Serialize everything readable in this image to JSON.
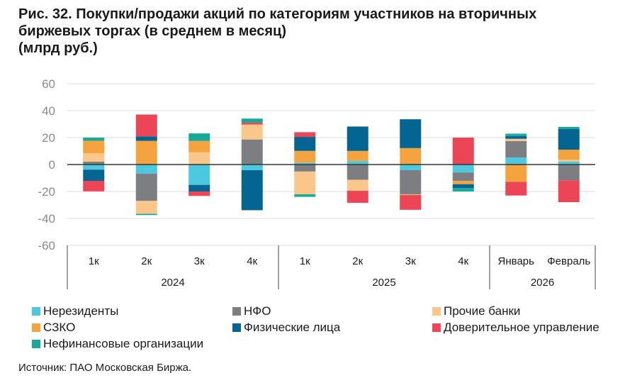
{
  "title_lines": [
    "Рис. 32. Покупки/продажи акций по категориям участников на вторичных",
    "биржевых торгах (в среднем в месяц)",
    "(млрд руб.)"
  ],
  "source": "Источник: ПАО Московская Биржа.",
  "chart_data": {
    "type": "bar",
    "stacked": true,
    "title": "Рис. 32. Покупки/продажи акций по категориям участников на вторичных биржевых торгах (в среднем в месяц) (млрд руб.)",
    "ylim": [
      -60,
      60
    ],
    "yticks": [
      60,
      40,
      20,
      0,
      -20,
      -40,
      -60
    ],
    "grid": true,
    "legend_position": "bottom",
    "categories": [
      "1к",
      "2к",
      "3к",
      "4к",
      "1к",
      "2к",
      "3к",
      "4к",
      "Январь",
      "Февраль"
    ],
    "groups": [
      {
        "label": "2024",
        "count": 4
      },
      {
        "label": "2025",
        "count": 4
      },
      {
        "label": "2026",
        "count": 2
      }
    ],
    "series": [
      {
        "name": "Нерезиденты",
        "color": "#4DC9DF",
        "values": [
          -3.8,
          -6.8,
          -15.1,
          -4.2,
          1.4,
          2.6,
          -4.2,
          -5.9,
          5.2,
          2.3
        ]
      },
      {
        "name": "НФО",
        "color": "#7D7E82",
        "values": [
          2.1,
          -20.2,
          0,
          18.6,
          -5.2,
          -11.3,
          -17.9,
          -6.3,
          12.2,
          -11.7
        ]
      },
      {
        "name": "Прочие банки",
        "color": "#FBC68A",
        "values": [
          6.3,
          -9.6,
          9.2,
          11.1,
          -16.9,
          -8.2,
          -0.5,
          0,
          1.7,
          1.2
        ]
      },
      {
        "name": "СЗКО",
        "color": "#F5A33F",
        "values": [
          9.2,
          17.6,
          8.3,
          0,
          8.7,
          7.5,
          12.2,
          -2.4,
          -12.9,
          7.5
        ]
      },
      {
        "name": "Физические лица",
        "color": "#046592",
        "values": [
          -8.3,
          3.3,
          -4.9,
          -29.7,
          10.4,
          18.1,
          21.4,
          -2.8,
          2.1,
          15.3
        ]
      },
      {
        "name": "Доверительное управление",
        "color": "#EC4656",
        "values": [
          -7.8,
          16.2,
          -3.3,
          1.4,
          3.5,
          -8.9,
          -11.0,
          20.0,
          -10.1,
          -16.2
        ]
      },
      {
        "name": "Нефинансовые организации",
        "color": "#18A99A",
        "values": [
          2.4,
          -0.9,
          5.6,
          3.0,
          -1.9,
          0,
          0,
          -2.6,
          1.7,
          1.6
        ]
      }
    ]
  }
}
